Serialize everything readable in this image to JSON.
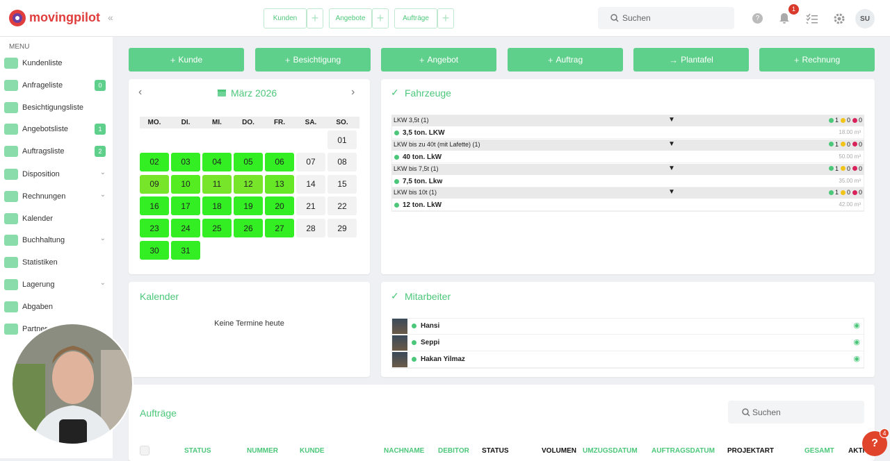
{
  "brand": "movingpilot",
  "topbar": {
    "quick_tabs": [
      "Kunden",
      "Angebote",
      "Aufträge"
    ],
    "search_placeholder": "Suchen",
    "notification_count": "1",
    "avatar": "SU"
  },
  "sidebar": {
    "menu_label": "MENU",
    "items": [
      {
        "label": "Kundenliste"
      },
      {
        "label": "Anfrageliste",
        "badge": "0"
      },
      {
        "label": "Besichtigungsliste"
      },
      {
        "label": "Angebotsliste",
        "badge": "1"
      },
      {
        "label": "Auftragsliste",
        "badge": "2"
      },
      {
        "label": "Disposition",
        "expandable": true
      },
      {
        "label": "Rechnungen",
        "expandable": true
      },
      {
        "label": "Kalender"
      },
      {
        "label": "Buchhaltung",
        "expandable": true
      },
      {
        "label": "Statistiken"
      },
      {
        "label": "Lagerung",
        "expandable": true
      },
      {
        "label": "Abgaben"
      },
      {
        "label": "Partner"
      }
    ]
  },
  "actions": [
    "Kunde",
    "Besichtigung",
    "Angebot",
    "Auftrag",
    "Plantafel",
    "Rechnung"
  ],
  "calendar": {
    "title": "März 2026",
    "weekdays": [
      "MO.",
      "DI.",
      "MI.",
      "DO.",
      "FR.",
      "SA.",
      "SO."
    ],
    "weeks": [
      [
        null,
        null,
        null,
        null,
        null,
        null,
        {
          "label": "01"
        }
      ],
      [
        {
          "label": "02",
          "color": "#33ee22"
        },
        {
          "label": "03",
          "color": "#33ee22"
        },
        {
          "label": "04",
          "color": "#33ee22"
        },
        {
          "label": "05",
          "color": "#33ee22"
        },
        {
          "label": "06",
          "color": "#33ee22"
        },
        {
          "label": "07"
        },
        {
          "label": "08"
        }
      ],
      [
        {
          "label": "09",
          "color": "#77e62a"
        },
        {
          "label": "10",
          "color": "#55ec22"
        },
        {
          "label": "11",
          "color": "#77e62a"
        },
        {
          "label": "12",
          "color": "#77e62a"
        },
        {
          "label": "13",
          "color": "#66e826"
        },
        {
          "label": "14"
        },
        {
          "label": "15"
        }
      ],
      [
        {
          "label": "16",
          "color": "#33ee22"
        },
        {
          "label": "17",
          "color": "#33ee22"
        },
        {
          "label": "18",
          "color": "#33ee22"
        },
        {
          "label": "19",
          "color": "#33ee22"
        },
        {
          "label": "20",
          "color": "#33ee22"
        },
        {
          "label": "21"
        },
        {
          "label": "22"
        }
      ],
      [
        {
          "label": "23",
          "color": "#33ee22"
        },
        {
          "label": "24",
          "color": "#33ee22"
        },
        {
          "label": "25",
          "color": "#33ee22"
        },
        {
          "label": "26",
          "color": "#33ee22"
        },
        {
          "label": "27",
          "color": "#33ee22"
        },
        {
          "label": "28"
        },
        {
          "label": "29"
        }
      ],
      [
        {
          "label": "30",
          "color": "#33ee22"
        },
        {
          "label": "31",
          "color": "#33ee22"
        },
        null,
        null,
        null,
        null,
        null
      ]
    ]
  },
  "vehicles": {
    "title": "Fahrzeuge",
    "groups": [
      {
        "name": "LKW 3,5t (1)",
        "counts": [
          "1",
          "0",
          "0"
        ],
        "vehicle": "3,5 ton. LKW",
        "volume": "18.00 m³"
      },
      {
        "name": "LKW bis zu 40t (mit Lafette) (1)",
        "counts": [
          "1",
          "0",
          "0"
        ],
        "vehicle": "40 ton. LkW",
        "volume": "50.00 m³"
      },
      {
        "name": "LKW bis 7,5t (1)",
        "counts": [
          "1",
          "0",
          "0"
        ],
        "vehicle": "7,5 ton. Lkw",
        "volume": "35.00 m³"
      },
      {
        "name": "LKW bis 10t (1)",
        "counts": [
          "1",
          "0",
          "0"
        ],
        "vehicle": "12 ton. LkW",
        "volume": "42.00 m³"
      }
    ]
  },
  "appointments": {
    "title": "Kalender",
    "empty": "Keine Termine heute"
  },
  "staff": {
    "title": "Mitarbeiter",
    "members": [
      "Hansi",
      "Seppi",
      "Hakan Yilmaz"
    ]
  },
  "orders": {
    "title": "Aufträge",
    "search_placeholder": "Suchen",
    "columns": [
      {
        "label": "STATUS",
        "color": "#4cc77a"
      },
      {
        "label": "NUMMER",
        "color": "#4cc77a"
      },
      {
        "label": "KUNDE",
        "color": "#4cc77a"
      },
      {
        "label": "NACHNAME",
        "color": "#4cc77a"
      },
      {
        "label": "DEBITOR",
        "color": "#4cc77a"
      },
      {
        "label": "STATUS",
        "color": "#111111"
      },
      {
        "label": "VOLUMEN",
        "color": "#111111"
      },
      {
        "label": "UMZUGSDATUM",
        "color": "#4cc77a"
      },
      {
        "label": "AUFTRAGSDATUM",
        "color": "#4cc77a"
      },
      {
        "label": "PROJEKTART",
        "color": "#111111"
      },
      {
        "label": "GESAMT",
        "color": "#4cc77a"
      },
      {
        "label": "AKTIONEN",
        "color": "#111111"
      }
    ]
  },
  "help_badge": "4"
}
